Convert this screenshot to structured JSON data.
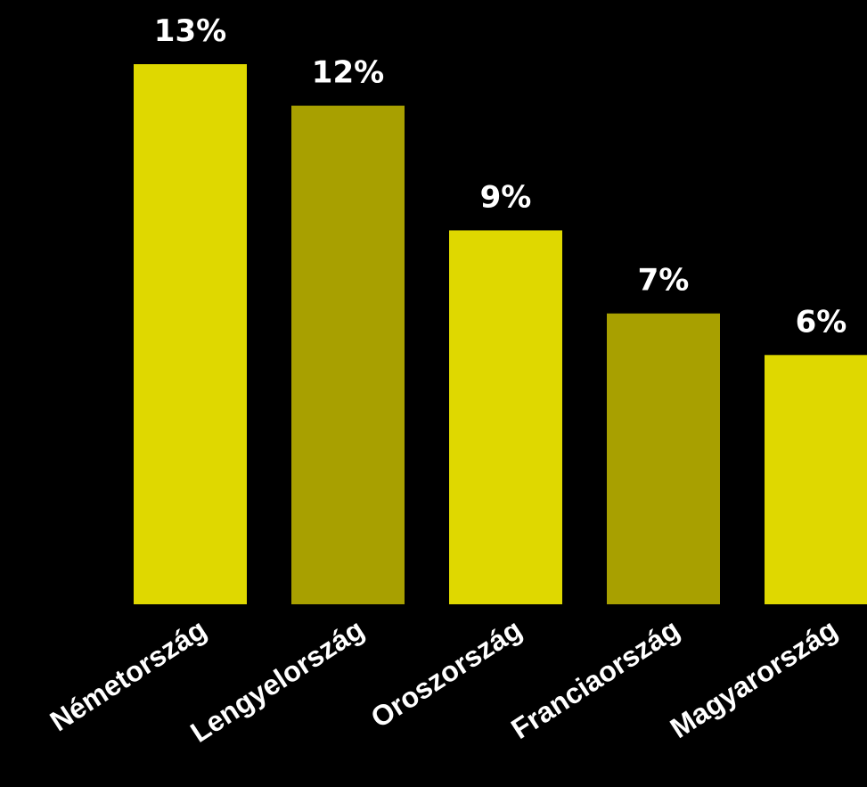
{
  "chart_data": {
    "type": "bar",
    "title": "",
    "xlabel": "",
    "ylabel": "",
    "categories": [
      "Németország",
      "Lengyelország",
      "Oroszország",
      "Franciaország",
      "Magyarország"
    ],
    "values": [
      13,
      12,
      9,
      7,
      6
    ],
    "value_labels": [
      "13%",
      "12%",
      "9%",
      "7%",
      "6%"
    ],
    "ylim": [
      0,
      13
    ],
    "grid": false,
    "legend": "none",
    "colors": {
      "background": "#000000",
      "bar_bright": "#dfd800",
      "bar_dark": "#a8a000",
      "text": "#ffffff"
    }
  }
}
